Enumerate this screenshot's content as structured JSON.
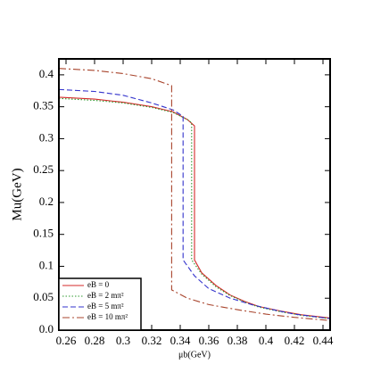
{
  "chart_data": {
    "type": "line",
    "x_label": "μb(GeV)",
    "y_label": "Mu(GeV)",
    "xlim": [
      0.255,
      0.445
    ],
    "ylim": [
      0,
      0.425
    ],
    "xticks": [
      0.26,
      0.28,
      0.3,
      0.32,
      0.34,
      0.36,
      0.38,
      0.4,
      0.42,
      0.44
    ],
    "yticks": [
      {
        "value": 0,
        "label": "0.0"
      },
      0.05,
      0.1,
      0.15,
      0.2,
      0.25,
      0.3,
      0.35,
      0.4
    ],
    "legend": "lower left",
    "series": [
      {
        "name": "eB = 0",
        "color": "#d42a2a",
        "style": "solid",
        "x": [
          0.255,
          0.28,
          0.3,
          0.32,
          0.335,
          0.345,
          0.35,
          0.35,
          0.355,
          0.365,
          0.375,
          0.385,
          0.395,
          0.41,
          0.425,
          0.445
        ],
        "values": [
          0.365,
          0.362,
          0.357,
          0.35,
          0.342,
          0.33,
          0.32,
          0.11,
          0.09,
          0.07,
          0.055,
          0.045,
          0.037,
          0.03,
          0.024,
          0.019
        ]
      },
      {
        "name": "eB = 2 mπ²",
        "color": "#2e9a2e",
        "style": "dotted",
        "x": [
          0.255,
          0.28,
          0.3,
          0.32,
          0.335,
          0.345,
          0.348,
          0.348,
          0.355,
          0.365,
          0.375,
          0.385,
          0.395,
          0.41,
          0.425,
          0.445
        ],
        "values": [
          0.363,
          0.36,
          0.356,
          0.349,
          0.341,
          0.33,
          0.325,
          0.11,
          0.088,
          0.068,
          0.054,
          0.044,
          0.036,
          0.029,
          0.023,
          0.018
        ]
      },
      {
        "name": "eB = 5 mπ²",
        "color": "#3333cc",
        "style": "dashed",
        "x": [
          0.255,
          0.28,
          0.3,
          0.32,
          0.335,
          0.342,
          0.342,
          0.35,
          0.36,
          0.375,
          0.39,
          0.405,
          0.42,
          0.445
        ],
        "values": [
          0.377,
          0.374,
          0.368,
          0.356,
          0.345,
          0.335,
          0.11,
          0.085,
          0.065,
          0.05,
          0.04,
          0.032,
          0.025,
          0.018
        ]
      },
      {
        "name": "eB = 10 mπ²",
        "color": "#a8442c",
        "style": "dashdot",
        "x": [
          0.255,
          0.28,
          0.3,
          0.32,
          0.334,
          0.334,
          0.345,
          0.36,
          0.38,
          0.4,
          0.42,
          0.445
        ],
        "values": [
          0.41,
          0.407,
          0.402,
          0.394,
          0.383,
          0.063,
          0.05,
          0.04,
          0.032,
          0.025,
          0.02,
          0.015
        ]
      }
    ]
  }
}
